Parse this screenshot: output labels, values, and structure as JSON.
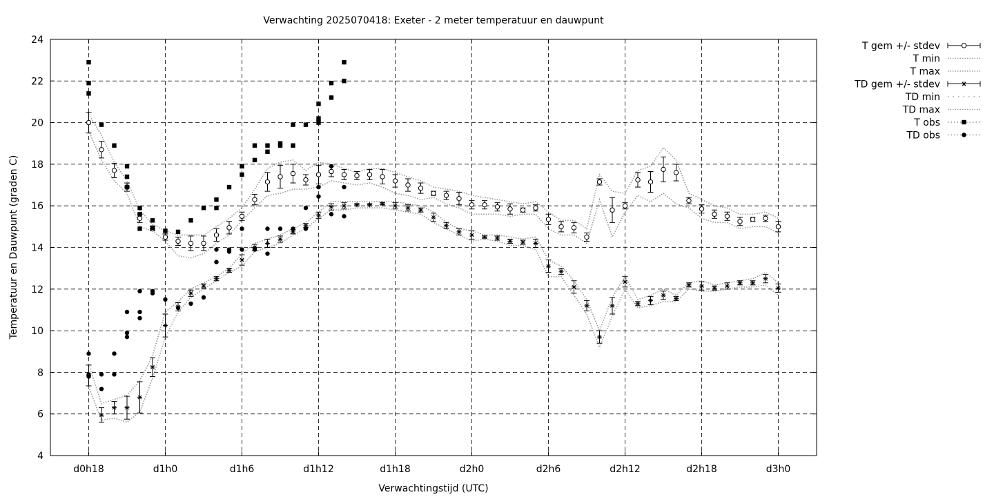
{
  "chart_data": {
    "type": "line",
    "title": "Verwachting 2025070418: Exeter - 2 meter temperatuur en dauwpunt",
    "xlabel": "Verwachtingstijd (UTC)",
    "ylabel": "Temperatuur en Dauwpunt (graden C)",
    "x_unit": "hours since d0h0",
    "xlim": [
      15,
      75
    ],
    "ylim": [
      4,
      24
    ],
    "yticks": [
      4,
      6,
      8,
      10,
      12,
      14,
      16,
      18,
      20,
      22,
      24
    ],
    "xticks": [
      {
        "x": 18,
        "label": "d0h18"
      },
      {
        "x": 24,
        "label": "d1h0"
      },
      {
        "x": 30,
        "label": "d1h6"
      },
      {
        "x": 36,
        "label": "d1h12"
      },
      {
        "x": 42,
        "label": "d1h18"
      },
      {
        "x": 48,
        "label": "d2h0"
      },
      {
        "x": 54,
        "label": "d2h6"
      },
      {
        "x": 60,
        "label": "d2h12"
      },
      {
        "x": 66,
        "label": "d2h18"
      },
      {
        "x": 72,
        "label": "d3h0"
      }
    ],
    "grid": true,
    "legend_position": "outside-right",
    "series": [
      {
        "name": "T gem +/- stdev",
        "x": [
          18,
          19,
          20,
          21,
          22,
          23,
          24,
          25,
          26,
          27,
          28,
          29,
          30,
          31,
          32,
          33,
          34,
          35,
          36,
          37,
          38,
          39,
          40,
          41,
          42,
          43,
          44,
          45,
          46,
          47,
          48,
          49,
          50,
          51,
          52,
          53,
          54,
          55,
          56,
          57,
          58,
          59,
          60,
          61,
          62,
          63,
          64,
          65,
          66,
          67,
          68,
          69,
          70,
          71,
          72
        ],
        "y": [
          20.0,
          18.7,
          17.7,
          16.9,
          15.4,
          14.9,
          14.5,
          14.3,
          14.2,
          14.2,
          14.6,
          14.95,
          15.5,
          16.3,
          17.15,
          17.4,
          17.55,
          17.25,
          17.5,
          17.65,
          17.5,
          17.45,
          17.5,
          17.4,
          17.2,
          17.0,
          16.85,
          16.6,
          16.5,
          16.35,
          16.05,
          16.05,
          15.95,
          15.85,
          15.8,
          15.9,
          15.35,
          15.0,
          14.95,
          14.5,
          17.15,
          15.8,
          16.0,
          17.25,
          17.15,
          17.75,
          17.6,
          16.25,
          15.85,
          15.6,
          15.5,
          15.25,
          15.35,
          15.4,
          15.0
        ],
        "stdev": [
          0.5,
          0.4,
          0.35,
          0.2,
          0.2,
          0.1,
          0.15,
          0.2,
          0.35,
          0.35,
          0.3,
          0.3,
          0.2,
          0.25,
          0.45,
          0.55,
          0.45,
          0.25,
          0.45,
          0.25,
          0.25,
          0.2,
          0.25,
          0.35,
          0.3,
          0.3,
          0.25,
          0.1,
          0.2,
          0.3,
          0.2,
          0.2,
          0.2,
          0.25,
          0.1,
          0.15,
          0.25,
          0.25,
          0.25,
          0.2,
          0.15,
          0.6,
          0.15,
          0.35,
          0.5,
          0.6,
          0.4,
          0.15,
          0.2,
          0.2,
          0.2,
          0.2,
          0.1,
          0.15,
          0.25
        ]
      },
      {
        "name": "T min",
        "x": [
          18,
          19,
          20,
          21,
          22,
          23,
          24,
          25,
          26,
          27,
          28,
          29,
          30,
          31,
          32,
          33,
          34,
          35,
          36,
          37,
          38,
          39,
          40,
          41,
          42,
          43,
          44,
          45,
          46,
          47,
          48,
          49,
          50,
          51,
          52,
          53,
          54,
          55,
          56,
          57,
          58,
          59,
          60,
          61,
          62,
          63,
          64,
          65,
          66,
          67,
          68,
          69,
          70,
          71,
          72
        ],
        "y": [
          19.6,
          18.2,
          17.2,
          16.6,
          15.0,
          14.8,
          14.3,
          13.6,
          13.5,
          13.7,
          14.2,
          14.6,
          15.3,
          15.9,
          16.5,
          16.6,
          16.8,
          16.8,
          16.9,
          17.2,
          17.1,
          17.0,
          17.1,
          16.9,
          16.6,
          16.5,
          16.3,
          16.4,
          16.1,
          15.9,
          15.6,
          15.6,
          15.6,
          15.5,
          15.6,
          15.6,
          14.9,
          14.6,
          14.6,
          14.2,
          16.3,
          14.5,
          15.7,
          16.5,
          16.2,
          16.6,
          16.1,
          15.9,
          15.4,
          15.2,
          15.2,
          14.9,
          15.0,
          15.0,
          14.7
        ]
      },
      {
        "name": "T max",
        "x": [
          18,
          19,
          20,
          21,
          22,
          23,
          24,
          25,
          26,
          27,
          28,
          29,
          30,
          31,
          32,
          33,
          34,
          35,
          36,
          37,
          38,
          39,
          40,
          41,
          42,
          43,
          44,
          45,
          46,
          47,
          48,
          49,
          50,
          51,
          52,
          53,
          54,
          55,
          56,
          57,
          58,
          59,
          60,
          61,
          62,
          63,
          64,
          65,
          66,
          67,
          68,
          69,
          70,
          71,
          72
        ],
        "y": [
          20.4,
          19.4,
          18.1,
          17.2,
          15.8,
          15.1,
          14.8,
          14.6,
          14.6,
          14.6,
          15.0,
          15.4,
          15.9,
          16.8,
          17.8,
          18.1,
          18.2,
          17.7,
          18.1,
          18.0,
          17.8,
          17.6,
          17.8,
          17.8,
          17.6,
          17.4,
          17.2,
          16.9,
          16.8,
          16.7,
          16.5,
          16.4,
          16.3,
          16.2,
          16.1,
          16.2,
          15.7,
          15.3,
          15.3,
          14.9,
          17.5,
          16.7,
          16.6,
          17.7,
          17.9,
          18.8,
          18.2,
          16.6,
          16.3,
          16.0,
          15.9,
          15.6,
          15.6,
          15.7,
          15.4
        ]
      },
      {
        "name": "TD gem +/- stdev",
        "x": [
          18,
          19,
          20,
          21,
          22,
          23,
          24,
          25,
          26,
          27,
          28,
          29,
          30,
          31,
          32,
          33,
          34,
          35,
          36,
          37,
          38,
          39,
          40,
          41,
          42,
          43,
          44,
          45,
          46,
          47,
          48,
          49,
          50,
          51,
          52,
          53,
          54,
          55,
          56,
          57,
          58,
          59,
          60,
          61,
          62,
          63,
          64,
          65,
          66,
          67,
          68,
          69,
          70,
          71,
          72
        ],
        "y": [
          7.85,
          5.95,
          6.3,
          6.3,
          6.8,
          8.25,
          10.25,
          11.15,
          11.8,
          12.15,
          12.5,
          12.9,
          13.4,
          14.0,
          14.2,
          14.4,
          14.75,
          15.05,
          15.55,
          15.95,
          16.0,
          16.05,
          16.05,
          16.1,
          16.0,
          15.9,
          15.8,
          15.45,
          15.05,
          14.75,
          14.6,
          14.5,
          14.45,
          14.3,
          14.25,
          14.2,
          13.1,
          12.85,
          12.1,
          11.2,
          9.7,
          11.2,
          12.35,
          11.3,
          11.45,
          11.7,
          11.55,
          12.2,
          12.15,
          12.05,
          12.15,
          12.3,
          12.3,
          12.5,
          12.05
        ],
        "stdev": [
          0.5,
          0.35,
          0.3,
          0.55,
          0.75,
          0.45,
          0.55,
          0.2,
          0.15,
          0.1,
          0.1,
          0.1,
          0.25,
          0.15,
          0.2,
          0.15,
          0.1,
          0.1,
          0.15,
          0.15,
          0.15,
          0.05,
          0.05,
          0.05,
          0.15,
          0.15,
          0.1,
          0.2,
          0.15,
          0.15,
          0.2,
          0.05,
          0.1,
          0.1,
          0.1,
          0.2,
          0.3,
          0.15,
          0.3,
          0.25,
          0.3,
          0.4,
          0.25,
          0.1,
          0.2,
          0.2,
          0.1,
          0.1,
          0.2,
          0.1,
          0.15,
          0.1,
          0.1,
          0.2,
          0.2
        ]
      },
      {
        "name": "TD min",
        "x": [
          18,
          19,
          20,
          21,
          22,
          23,
          24,
          25,
          26,
          27,
          28,
          29,
          30,
          31,
          32,
          33,
          34,
          35,
          36,
          37,
          38,
          39,
          40,
          41,
          42,
          43,
          44,
          45,
          46,
          47,
          48,
          49,
          50,
          51,
          52,
          53,
          54,
          55,
          56,
          57,
          58,
          59,
          60,
          61,
          62,
          63,
          64,
          65,
          66,
          67,
          68,
          69,
          70,
          71,
          72
        ],
        "y": [
          7.3,
          5.7,
          5.8,
          5.6,
          6.1,
          7.7,
          9.7,
          10.9,
          11.6,
          12.0,
          12.4,
          12.8,
          13.1,
          13.8,
          14.0,
          14.2,
          14.6,
          14.9,
          15.4,
          15.8,
          15.8,
          15.9,
          15.9,
          15.9,
          15.8,
          15.7,
          15.6,
          15.2,
          14.9,
          14.6,
          14.3,
          14.4,
          14.3,
          14.1,
          14.1,
          13.9,
          12.6,
          12.6,
          11.7,
          10.8,
          9.2,
          10.7,
          12.0,
          11.1,
          11.2,
          11.4,
          11.4,
          12.0,
          11.9,
          11.9,
          12.0,
          12.1,
          12.1,
          12.2,
          11.7
        ]
      },
      {
        "name": "TD max",
        "x": [
          18,
          19,
          20,
          21,
          22,
          23,
          24,
          25,
          26,
          27,
          28,
          29,
          30,
          31,
          32,
          33,
          34,
          35,
          36,
          37,
          38,
          39,
          40,
          41,
          42,
          43,
          44,
          45,
          46,
          47,
          48,
          49,
          50,
          51,
          52,
          53,
          54,
          55,
          56,
          57,
          58,
          59,
          60,
          61,
          62,
          63,
          64,
          65,
          66,
          67,
          68,
          69,
          70,
          71,
          72
        ],
        "y": [
          8.4,
          6.5,
          6.7,
          6.9,
          7.6,
          8.8,
          10.9,
          11.4,
          12.0,
          12.3,
          12.6,
          13.0,
          13.7,
          14.2,
          14.4,
          14.6,
          14.9,
          15.2,
          15.7,
          16.2,
          16.2,
          16.2,
          16.2,
          16.2,
          16.2,
          16.1,
          16.0,
          15.7,
          15.2,
          14.9,
          14.8,
          14.6,
          14.6,
          14.5,
          14.4,
          14.5,
          13.4,
          13.1,
          12.4,
          11.5,
          10.0,
          11.6,
          12.6,
          11.5,
          11.7,
          12.0,
          11.7,
          12.3,
          12.4,
          12.2,
          12.3,
          12.4,
          12.5,
          12.8,
          12.3
        ]
      },
      {
        "name": "T obs",
        "x": [
          18,
          18,
          18,
          19,
          20,
          21,
          21,
          21,
          22,
          22,
          22,
          23,
          23,
          24,
          25,
          26,
          27,
          28,
          28,
          29,
          30,
          30,
          31,
          31,
          32,
          32,
          33,
          33,
          34,
          34,
          35,
          36,
          36,
          36,
          37,
          37,
          38,
          38
        ],
        "y": [
          22.9,
          21.9,
          21.4,
          19.9,
          18.9,
          17.9,
          17.4,
          16.9,
          15.9,
          15.6,
          14.9,
          15.3,
          14.95,
          14.8,
          14.75,
          15.3,
          15.9,
          16.3,
          15.9,
          16.9,
          17.9,
          17.5,
          18.9,
          18.2,
          18.9,
          18.6,
          19.0,
          18.9,
          19.9,
          18.9,
          19.9,
          20.9,
          20.2,
          20.0,
          21.9,
          21.2,
          22.9,
          22.0
        ]
      },
      {
        "name": "TD obs",
        "x": [
          18,
          18,
          18,
          19,
          19,
          20,
          20,
          21,
          21,
          21,
          22,
          22,
          22,
          23,
          23,
          24,
          25,
          26,
          27,
          28,
          28,
          29,
          29,
          30,
          30,
          31,
          31,
          32,
          32,
          33,
          34,
          35,
          35,
          36,
          36,
          37,
          37,
          38,
          38
        ],
        "y": [
          8.9,
          7.9,
          7.8,
          7.9,
          7.2,
          8.9,
          7.9,
          10.9,
          9.9,
          9.7,
          11.9,
          10.9,
          10.6,
          11.9,
          11.8,
          11.5,
          11.1,
          11.3,
          11.6,
          13.9,
          13.3,
          13.9,
          13.8,
          14.9,
          13.9,
          13.95,
          13.9,
          14.9,
          13.7,
          14.9,
          14.9,
          15.9,
          14.9,
          16.9,
          16.45,
          17.9,
          15.6,
          16.9,
          15.5
        ]
      }
    ]
  }
}
